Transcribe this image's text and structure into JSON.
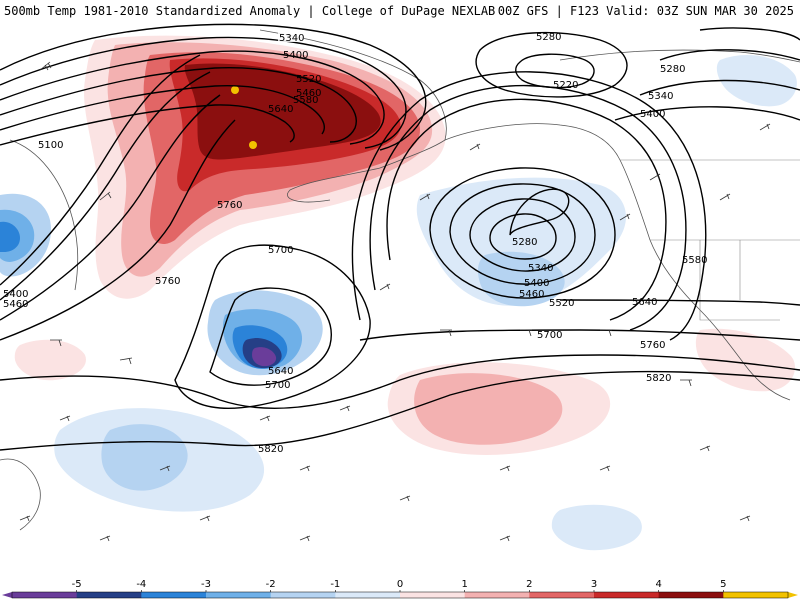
{
  "header": {
    "title_left": "500mb Temp 1981-2010 Standardized Anomaly | College of DuPage NEXLAB",
    "title_right": "00Z GFS | F123 Valid: 03Z SUN MAR 30 2025"
  },
  "map": {
    "contour_labels": [
      {
        "id": "a",
        "text": "5340"
      },
      {
        "id": "b",
        "text": "5400"
      },
      {
        "id": "c",
        "text": "5460"
      },
      {
        "id": "d",
        "text": "5520"
      },
      {
        "id": "e",
        "text": "5580"
      },
      {
        "id": "f",
        "text": "5640"
      },
      {
        "id": "g",
        "text": "5100"
      },
      {
        "id": "h",
        "text": "5760"
      },
      {
        "id": "i",
        "text": "5700"
      },
      {
        "id": "j",
        "text": "5760"
      },
      {
        "id": "k",
        "text": "5400"
      },
      {
        "id": "l",
        "text": "5460"
      },
      {
        "id": "m",
        "text": "5640"
      },
      {
        "id": "n",
        "text": "5700"
      },
      {
        "id": "o",
        "text": "5820"
      },
      {
        "id": "p",
        "text": "5280"
      },
      {
        "id": "q",
        "text": "5220"
      },
      {
        "id": "r",
        "text": "5280"
      },
      {
        "id": "s",
        "text": "5340"
      },
      {
        "id": "t",
        "text": "5400"
      },
      {
        "id": "u",
        "text": "5280"
      },
      {
        "id": "v",
        "text": "5340"
      },
      {
        "id": "w",
        "text": "5400"
      },
      {
        "id": "x",
        "text": "5460"
      },
      {
        "id": "y",
        "text": "5520"
      },
      {
        "id": "z",
        "text": "5580"
      },
      {
        "id": "aa",
        "text": "5640"
      },
      {
        "id": "ab",
        "text": "5700"
      },
      {
        "id": "ac",
        "text": "5760"
      },
      {
        "id": "ad",
        "text": "5820"
      }
    ]
  },
  "colorbar": {
    "ticks": [
      "-5",
      "-4",
      "-3",
      "-2",
      "-1",
      "0",
      "1",
      "2",
      "3",
      "4",
      "5"
    ],
    "colors": [
      "#6a3d9a",
      "#253f86",
      "#2b83d8",
      "#6fb0e8",
      "#b5d3f1",
      "#dbe9f8",
      "#fbe3e3",
      "#f3b1b1",
      "#e26666",
      "#c92a2a",
      "#8b0f0f",
      "#f2c200"
    ]
  }
}
